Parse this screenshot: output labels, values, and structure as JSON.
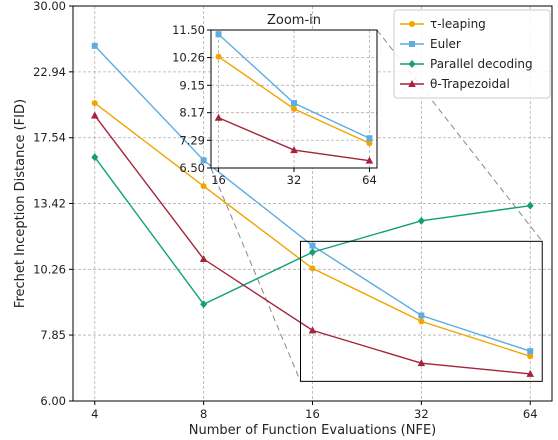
{
  "chart_data": {
    "type": "line",
    "xlabel": "Number of Function Evaluations (NFE)",
    "ylabel": "Frechet Inception Distance (FID)",
    "x": [
      4,
      8,
      16,
      32,
      64
    ],
    "xscale": "log2",
    "yscale": "log",
    "ylim": [
      6.0,
      30.0
    ],
    "yticks": [
      "6.00",
      "7.85",
      "10.26",
      "13.42",
      "17.54",
      "22.94",
      "30.00"
    ],
    "xticks": [
      "4",
      "8",
      "16",
      "32",
      "64"
    ],
    "grid": true,
    "legend_position": "top-right",
    "series": [
      {
        "name": "τ-leaping",
        "color": "#f0a500",
        "marker": "circle",
        "values": [
          20.2,
          14.4,
          10.3,
          8.3,
          7.2
        ]
      },
      {
        "name": "Euler",
        "color": "#5dade2",
        "marker": "square",
        "values": [
          25.5,
          16.0,
          11.3,
          8.5,
          7.35
        ]
      },
      {
        "name": "Parallel decoding",
        "color": "#12a073",
        "marker": "diamond",
        "values": [
          16.2,
          8.9,
          11.0,
          12.5,
          13.3
        ]
      },
      {
        "name": "θ-Trapezoidal",
        "color": "#a4243b",
        "marker": "triangle",
        "values": [
          19.2,
          10.7,
          8.0,
          7.0,
          6.7
        ]
      }
    ],
    "inset": {
      "title": "Zoom-in",
      "x": [
        16,
        32,
        64
      ],
      "xticks": [
        "16",
        "32",
        "64"
      ],
      "yticks": [
        "6.50",
        "7.29",
        "8.17",
        "9.15",
        "10.26",
        "11.50"
      ],
      "ylim": [
        6.5,
        11.5
      ]
    }
  }
}
